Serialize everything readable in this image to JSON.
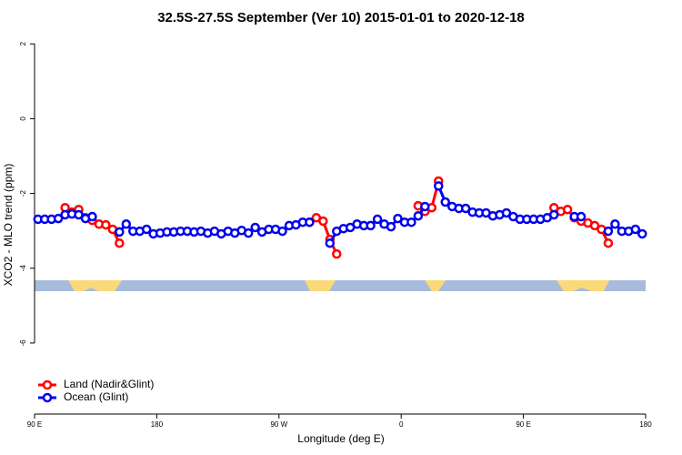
{
  "chart_data": {
    "type": "line",
    "title": "32.5S-27.5S September (Ver 10)   2015-01-01 to 2020-12-18",
    "x_label": "Longitude (deg E)",
    "y_label": "XCO2 - MLO trend (ppm)",
    "xlim": [
      90,
      540
    ],
    "xticks": [
      {
        "value": 90,
        "label": "90 E"
      },
      {
        "value": 180,
        "label": "180"
      },
      {
        "value": 270,
        "label": "90 W"
      },
      {
        "value": 360,
        "label": "0"
      },
      {
        "value": 450,
        "label": "90 E"
      },
      {
        "value": 540,
        "label": "180"
      }
    ],
    "ylim": [
      -7.9,
      2.2
    ],
    "yticks": [
      2,
      0,
      -2,
      -4,
      -6
    ],
    "legend": "bottom-left",
    "x": [
      92.5,
      97.5,
      102.5,
      107.5,
      112.5,
      117.5,
      122.5,
      127.5,
      132.5,
      137.5,
      142.5,
      147.5,
      152.5,
      157.5,
      162.5,
      167.5,
      172.5,
      177.5,
      182.5,
      187.5,
      192.5,
      197.5,
      202.5,
      207.5,
      212.5,
      217.5,
      222.5,
      227.5,
      232.5,
      237.5,
      242.5,
      247.5,
      252.5,
      257.5,
      262.5,
      267.5,
      272.5,
      277.5,
      282.5,
      287.5,
      292.5,
      297.5,
      302.5,
      307.5,
      312.5,
      317.5,
      322.5,
      327.5,
      332.5,
      337.5,
      342.5,
      347.5,
      352.5,
      357.5,
      362.5,
      367.5,
      372.5,
      377.5,
      382.5,
      387.5,
      392.5,
      397.5,
      402.5,
      407.5,
      412.5,
      417.5,
      422.5,
      427.5,
      432.5,
      437.5,
      442.5,
      447.5,
      452.5,
      457.5,
      462.5,
      467.5,
      472.5,
      477.5,
      482.5,
      487.5,
      492.5,
      497.5,
      502.5,
      507.5,
      512.5,
      517.5,
      522.5,
      527.5,
      532.5,
      537.5
    ],
    "series": [
      {
        "name": "Land (Nadir&Glint)",
        "color": "#ff0000",
        "values": [
          null,
          null,
          null,
          null,
          -2.38,
          -2.5,
          -2.43,
          -2.65,
          -2.72,
          -2.82,
          -2.84,
          -2.96,
          -3.33,
          null,
          null,
          null,
          null,
          null,
          null,
          null,
          null,
          null,
          null,
          null,
          null,
          null,
          null,
          null,
          null,
          null,
          null,
          null,
          null,
          null,
          null,
          null,
          null,
          null,
          null,
          null,
          -2.77,
          -2.65,
          -2.74,
          -3.23,
          -3.62,
          null,
          null,
          null,
          null,
          null,
          null,
          null,
          null,
          null,
          null,
          null,
          -2.33,
          -2.48,
          -2.38,
          -1.67,
          null,
          null,
          null,
          null,
          null,
          null,
          null,
          null,
          null,
          null,
          null,
          null,
          null,
          null,
          null,
          null,
          -2.38,
          -2.48,
          -2.43,
          -2.65,
          -2.74,
          -2.79,
          -2.86,
          -2.96,
          -3.33,
          null,
          null,
          null,
          null,
          null
        ]
      },
      {
        "name": "Ocean (Glint)",
        "color": "#0000ee",
        "values": [
          -2.69,
          -2.69,
          -2.69,
          -2.67,
          -2.57,
          -2.55,
          -2.57,
          -2.67,
          -2.62,
          null,
          null,
          null,
          -3.03,
          -2.82,
          -3.01,
          -3.01,
          -2.96,
          -3.08,
          -3.06,
          -3.03,
          -3.03,
          -3.01,
          -3.01,
          -3.03,
          -3.01,
          -3.06,
          -3.01,
          -3.08,
          -3.01,
          -3.06,
          -2.99,
          -3.06,
          -2.91,
          -3.03,
          -2.96,
          -2.96,
          -3.01,
          -2.86,
          -2.84,
          -2.77,
          -2.77,
          null,
          null,
          -3.33,
          -3.01,
          -2.94,
          -2.91,
          -2.82,
          -2.86,
          -2.86,
          -2.69,
          -2.82,
          -2.89,
          -2.67,
          -2.77,
          -2.77,
          -2.6,
          -2.35,
          null,
          -1.8,
          -2.23,
          -2.35,
          -2.4,
          -2.4,
          -2.5,
          -2.52,
          -2.52,
          -2.6,
          -2.57,
          -2.52,
          -2.62,
          -2.69,
          -2.69,
          -2.69,
          -2.69,
          -2.65,
          -2.57,
          null,
          null,
          -2.62,
          -2.62,
          null,
          null,
          null,
          -3.01,
          -2.82,
          -3.01,
          -3.01,
          -2.96,
          -3.08
        ]
      }
    ]
  }
}
